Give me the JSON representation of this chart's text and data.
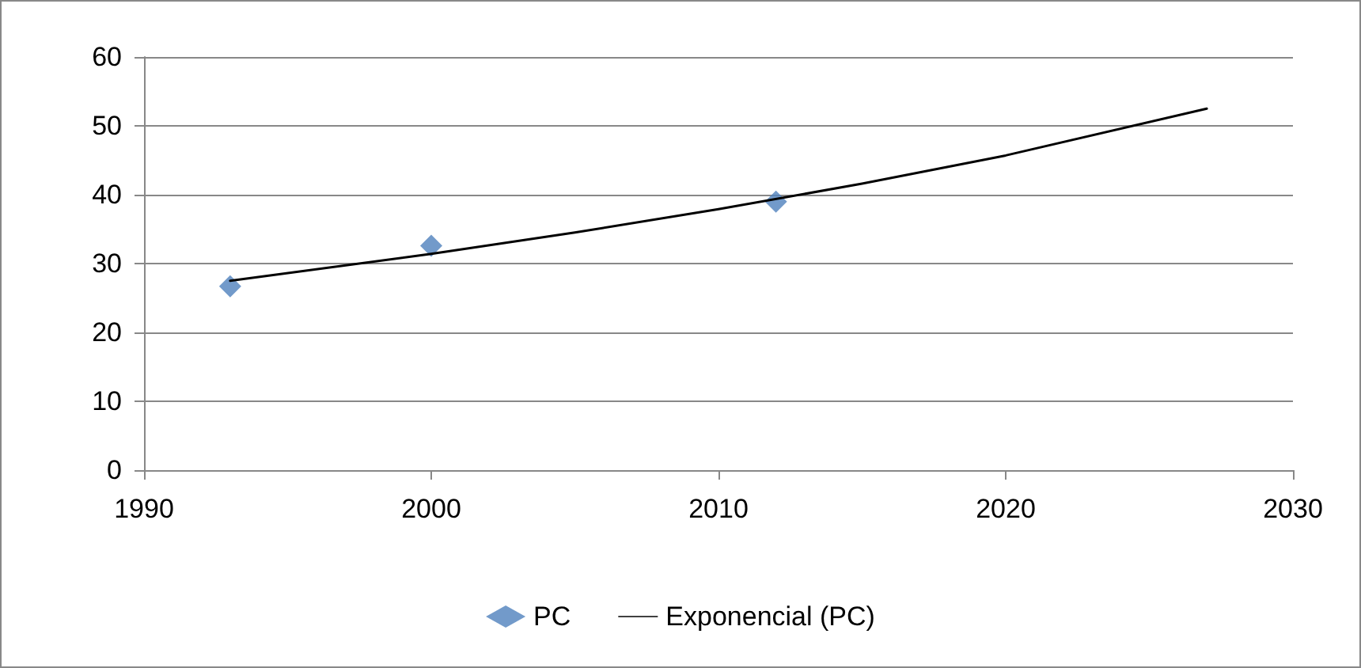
{
  "chart_data": {
    "type": "scatter",
    "series": [
      {
        "name": "PC",
        "color": "#4f81bd",
        "marker": "diamond",
        "x": [
          1993,
          2000,
          2012
        ],
        "values": [
          26.7,
          32.6,
          39.0
        ]
      },
      {
        "name": "Exponencial (PC)",
        "type": "line",
        "color": "#000000",
        "marker": "none",
        "line_style": "solid",
        "x": [
          1993,
          2000,
          2005,
          2010,
          2015,
          2020,
          2027
        ],
        "values": [
          27.5,
          31.4,
          34.5,
          37.9,
          41.6,
          45.7,
          52.5
        ]
      }
    ],
    "xlim": [
      1990,
      2030
    ],
    "xticks": [
      1990,
      2000,
      2010,
      2020,
      2030
    ],
    "ylim": [
      0,
      60
    ],
    "yticks": [
      0,
      10,
      20,
      30,
      40,
      50,
      60
    ],
    "grid": "y",
    "legend": "bottom"
  }
}
